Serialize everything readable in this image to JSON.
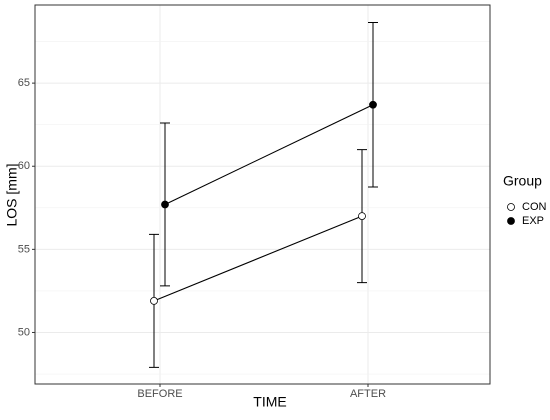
{
  "chart_data": {
    "type": "line",
    "xlabel": "TIME",
    "ylabel": "LOS [mm]",
    "categories": [
      "BEFORE",
      "AFTER"
    ],
    "series": [
      {
        "name": "CON",
        "color": "#000000",
        "marker_fill": "#ffffff",
        "values": [
          51.9,
          57.0
        ],
        "errors": [
          4.0,
          4.0
        ]
      },
      {
        "name": "EXP",
        "color": "#000000",
        "marker_fill": "#000000",
        "values": [
          57.7,
          63.7
        ],
        "errors": [
          4.9,
          4.95
        ]
      }
    ],
    "ylim": [
      46.9,
      69.7
    ],
    "yticks": [
      50,
      55,
      60,
      65
    ],
    "minor_yticks": [
      47.5,
      52.5,
      57.5,
      62.5,
      67.5
    ],
    "grid": true,
    "legend_title": "Group",
    "legend_position": "right"
  }
}
